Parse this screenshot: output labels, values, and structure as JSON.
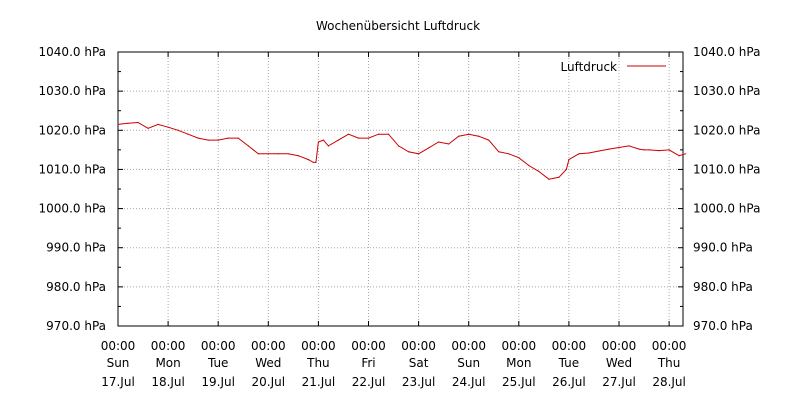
{
  "chart_data": {
    "type": "line",
    "title": "Wochenübersicht Luftdruck",
    "xlabel": "",
    "ylabel": "",
    "unit": "hPa",
    "ylim": [
      970,
      1040
    ],
    "yticks": [
      "970.0 hPa",
      "980.0 hPa",
      "990.0 hPa",
      "1000.0 hPa",
      "1010.0 hPa",
      "1020.0 hPa",
      "1030.0 hPa",
      "1040.0 hPa"
    ],
    "xlim_days": [
      0,
      11.33
    ],
    "xticks": [
      {
        "time": "00:00",
        "day": "Sun",
        "date": "17.Jul"
      },
      {
        "time": "00:00",
        "day": "Mon",
        "date": "18.Jul"
      },
      {
        "time": "00:00",
        "day": "Tue",
        "date": "19.Jul"
      },
      {
        "time": "00:00",
        "day": "Wed",
        "date": "20.Jul"
      },
      {
        "time": "00:00",
        "day": "Thu",
        "date": "21.Jul"
      },
      {
        "time": "00:00",
        "day": "Fri",
        "date": "22.Jul"
      },
      {
        "time": "00:00",
        "day": "Sat",
        "date": "23.Jul"
      },
      {
        "time": "00:00",
        "day": "Sun",
        "date": "24.Jul"
      },
      {
        "time": "00:00",
        "day": "Mon",
        "date": "25.Jul"
      },
      {
        "time": "00:00",
        "day": "Tue",
        "date": "26.Jul"
      },
      {
        "time": "00:00",
        "day": "Wed",
        "date": "27.Jul"
      },
      {
        "time": "00:00",
        "day": "Thu",
        "date": "28.Jul"
      }
    ],
    "grid": true,
    "legend_position": "top-right",
    "series": [
      {
        "name": "Luftdruck",
        "color": "#cc0000",
        "x_days": [
          0,
          0.2,
          0.4,
          0.6,
          0.8,
          1.0,
          1.2,
          1.4,
          1.6,
          1.8,
          2.0,
          2.2,
          2.4,
          2.6,
          2.8,
          3.0,
          3.2,
          3.4,
          3.6,
          3.8,
          3.9,
          3.95,
          4.0,
          4.1,
          4.2,
          4.4,
          4.6,
          4.8,
          5.0,
          5.2,
          5.4,
          5.6,
          5.8,
          6.0,
          6.2,
          6.4,
          6.6,
          6.8,
          7.0,
          7.2,
          7.4,
          7.6,
          7.8,
          8.0,
          8.2,
          8.4,
          8.6,
          8.8,
          8.95,
          9.0,
          9.2,
          9.4,
          9.6,
          9.8,
          10.0,
          10.2,
          10.4,
          10.5,
          10.6,
          10.8,
          11.0,
          11.2,
          11.33
        ],
        "y": [
          1021.5,
          1021.8,
          1022.0,
          1020.5,
          1021.5,
          1020.8,
          1020.0,
          1019.0,
          1018.0,
          1017.5,
          1017.5,
          1018.0,
          1018.0,
          1016.0,
          1014.0,
          1014.0,
          1014.0,
          1014.0,
          1013.5,
          1012.5,
          1011.8,
          1011.8,
          1017.0,
          1017.5,
          1016.0,
          1017.5,
          1019.0,
          1018.0,
          1018.0,
          1019.0,
          1019.0,
          1016.0,
          1014.5,
          1014.0,
          1015.5,
          1017.0,
          1016.5,
          1018.5,
          1019.0,
          1018.5,
          1017.5,
          1014.5,
          1014.0,
          1013.0,
          1011.0,
          1009.5,
          1007.5,
          1008.0,
          1010.0,
          1012.5,
          1014.0,
          1014.2,
          1014.7,
          1015.2,
          1015.6,
          1016.0,
          1015.2,
          1015.0,
          1015.0,
          1014.8,
          1015.0,
          1013.5,
          1014.0
        ]
      }
    ]
  }
}
